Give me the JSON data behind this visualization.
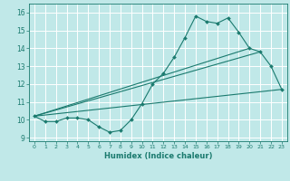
{
  "title": "",
  "xlabel": "Humidex (Indice chaleur)",
  "ylabel": "",
  "background_color": "#c0e8e8",
  "grid_color": "#ffffff",
  "line_color": "#1a7a6e",
  "xlim": [
    -0.5,
    23.5
  ],
  "ylim": [
    8.8,
    16.5
  ],
  "yticks": [
    9,
    10,
    11,
    12,
    13,
    14,
    15,
    16
  ],
  "xticks": [
    0,
    1,
    2,
    3,
    4,
    5,
    6,
    7,
    8,
    9,
    10,
    11,
    12,
    13,
    14,
    15,
    16,
    17,
    18,
    19,
    20,
    21,
    22,
    23
  ],
  "series1_x": [
    0,
    1,
    2,
    3,
    4,
    5,
    6,
    7,
    8,
    9,
    10,
    11,
    12,
    13,
    14,
    15,
    16,
    17,
    18,
    19,
    20,
    21,
    22,
    23
  ],
  "series1_y": [
    10.2,
    9.9,
    9.9,
    10.1,
    10.1,
    10.0,
    9.6,
    9.3,
    9.4,
    10.0,
    10.9,
    12.0,
    12.6,
    13.5,
    14.6,
    15.8,
    15.5,
    15.4,
    15.7,
    14.9,
    14.0,
    13.8,
    13.0,
    11.7
  ],
  "series2_x": [
    0,
    23
  ],
  "series2_y": [
    10.2,
    11.7
  ],
  "series3_x": [
    0,
    20
  ],
  "series3_y": [
    10.2,
    14.0
  ],
  "series4_x": [
    0,
    21
  ],
  "series4_y": [
    10.2,
    13.8
  ]
}
